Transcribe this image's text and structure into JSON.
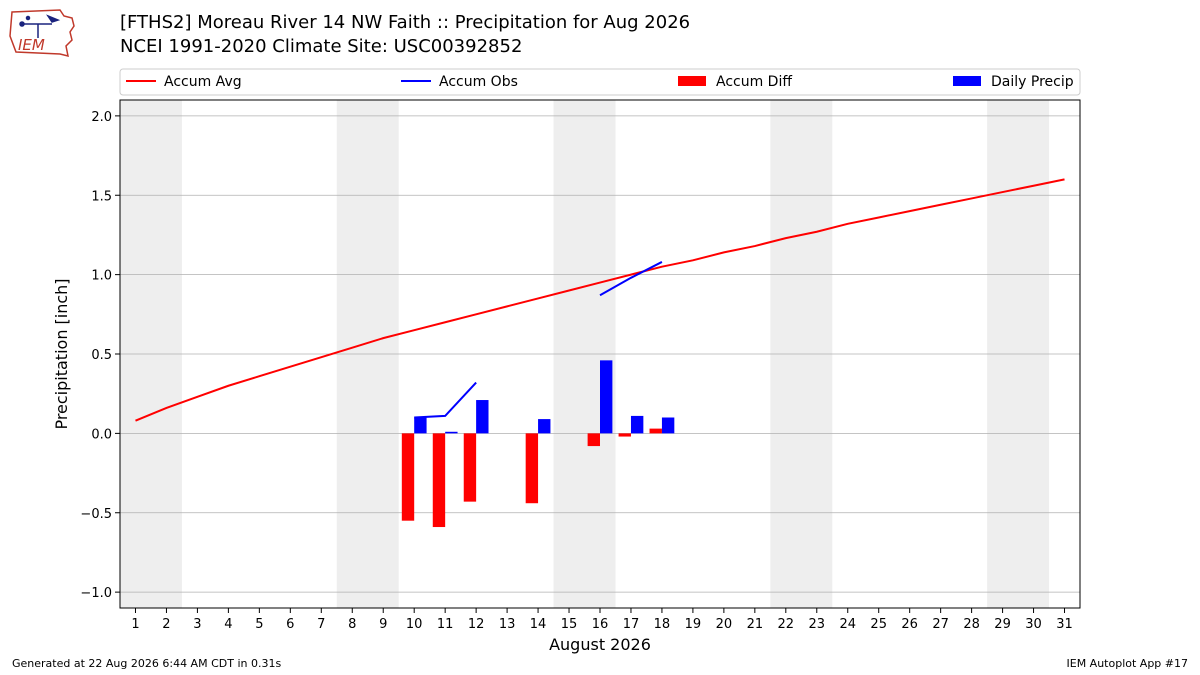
{
  "header": {
    "title_line1": "[FTHS2] Moreau River 14 NW Faith :: Precipitation for Aug 2026",
    "title_line2": "NCEI 1991-2020 Climate Site: USC00392852",
    "logo_text": "IEM"
  },
  "footer": {
    "generated": "Generated at 22 Aug 2026 6:44 AM CDT in 0.31s",
    "app": "IEM Autoplot App #17"
  },
  "colors": {
    "accum_avg": "#ff0000",
    "accum_obs": "#0000ff",
    "accum_diff": "#ff0000",
    "daily_precip": "#0000ff",
    "weekend_shade": "#eeeeee",
    "grid": "#b0b0b0"
  },
  "chart_data": {
    "type": "bar",
    "xlabel": "August 2026",
    "ylabel": "Precipitation [inch]",
    "xlim": [
      0.5,
      31.5
    ],
    "ylim": [
      -1.1,
      2.1
    ],
    "x_ticks": [
      1,
      2,
      3,
      4,
      5,
      6,
      7,
      8,
      9,
      10,
      11,
      12,
      13,
      14,
      15,
      16,
      17,
      18,
      19,
      20,
      21,
      22,
      23,
      24,
      25,
      26,
      27,
      28,
      29,
      30,
      31
    ],
    "y_ticks": [
      -1.0,
      -0.5,
      0.0,
      0.5,
      1.0,
      1.5,
      2.0
    ],
    "y_tick_labels": [
      "−1.0",
      "−0.5",
      "0.0",
      "0.5",
      "1.0",
      "1.5",
      "2.0"
    ],
    "grid": "horizontal",
    "legend_position": "top",
    "weekend_spans": [
      [
        0.5,
        2.5
      ],
      [
        7.5,
        9.5
      ],
      [
        14.5,
        16.5
      ],
      [
        21.5,
        23.5
      ],
      [
        28.5,
        30.5
      ]
    ],
    "legend": [
      {
        "label": "Accum Avg",
        "kind": "line",
        "color": "#ff0000"
      },
      {
        "label": "Accum Obs",
        "kind": "line",
        "color": "#0000ff"
      },
      {
        "label": "Accum Diff",
        "kind": "bar",
        "color": "#ff0000"
      },
      {
        "label": "Daily Precip",
        "kind": "bar",
        "color": "#0000ff"
      }
    ],
    "series": [
      {
        "name": "Accum Avg",
        "kind": "line",
        "x": [
          1,
          2,
          3,
          4,
          5,
          6,
          7,
          8,
          9,
          10,
          11,
          12,
          13,
          14,
          15,
          16,
          17,
          18,
          19,
          20,
          21,
          22,
          23,
          24,
          25,
          26,
          27,
          28,
          29,
          30,
          31
        ],
        "values": [
          0.08,
          0.16,
          0.23,
          0.3,
          0.36,
          0.42,
          0.48,
          0.54,
          0.6,
          0.65,
          0.7,
          0.75,
          0.8,
          0.85,
          0.9,
          0.95,
          1.0,
          1.05,
          1.09,
          1.14,
          1.18,
          1.23,
          1.27,
          1.32,
          1.36,
          1.4,
          1.44,
          1.48,
          1.52,
          1.56,
          1.6
        ]
      },
      {
        "name": "Accum Obs",
        "kind": "line",
        "segments": [
          {
            "x": [
              10,
              11,
              12
            ],
            "values": [
              0.1,
              0.11,
              0.32
            ]
          },
          {
            "x": [
              16,
              17,
              18
            ],
            "values": [
              0.87,
              0.98,
              1.08
            ]
          }
        ]
      },
      {
        "name": "Accum Diff",
        "kind": "bar",
        "x": [
          10,
          11,
          12,
          14,
          16,
          17,
          18
        ],
        "values": [
          -0.55,
          -0.59,
          -0.43,
          -0.44,
          -0.08,
          -0.02,
          0.03
        ]
      },
      {
        "name": "Daily Precip",
        "kind": "bar",
        "x": [
          10,
          11,
          12,
          14,
          16,
          17,
          18
        ],
        "values": [
          0.1,
          0.01,
          0.21,
          0.09,
          0.46,
          0.11,
          0.1
        ]
      }
    ]
  }
}
